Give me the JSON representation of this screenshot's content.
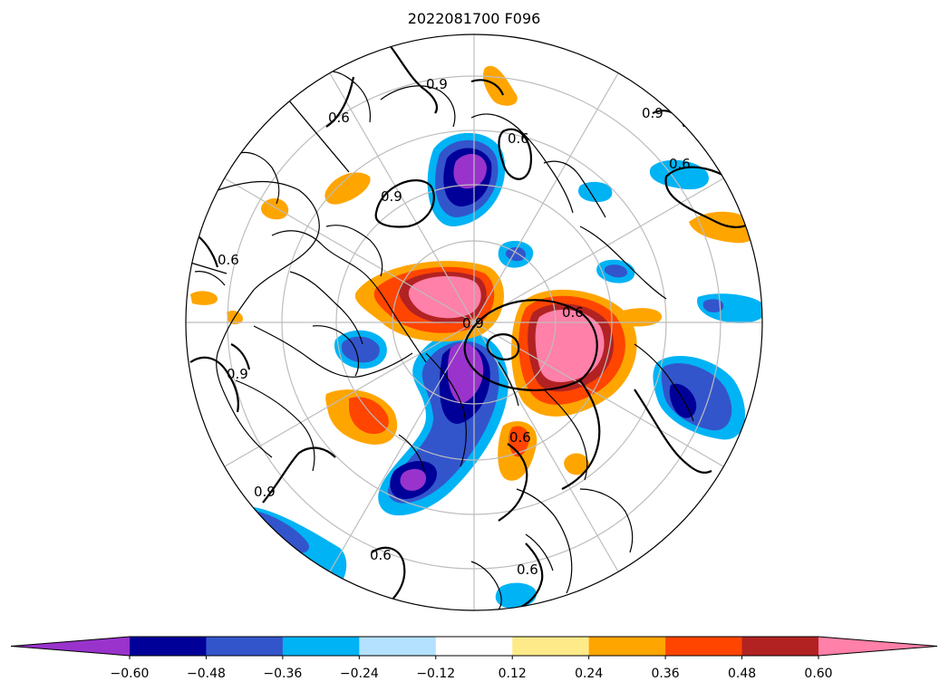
{
  "title": "2022081700 F096",
  "colorbar": {
    "colors": [
      "#9933cc",
      "#000099",
      "#3355cc",
      "#00b3f5",
      "#b3e1ff",
      "#ffffff",
      "#ffea8a",
      "#ffa500",
      "#ff4500",
      "#b22222",
      "#ff80a8"
    ],
    "ticks": [
      "−0.60",
      "−0.48",
      "−0.36",
      "−0.24",
      "−0.12",
      "0.12",
      "0.24",
      "0.36",
      "0.48",
      "0.60"
    ],
    "extend": "both"
  },
  "contour_labels": [
    "0.9",
    "0.6",
    "0.9",
    "0.6",
    "0.9",
    "0.6",
    "0.6",
    "0.9",
    "0.6",
    "0.9",
    "0.9",
    "0.6",
    "0.6",
    "0.6"
  ]
}
